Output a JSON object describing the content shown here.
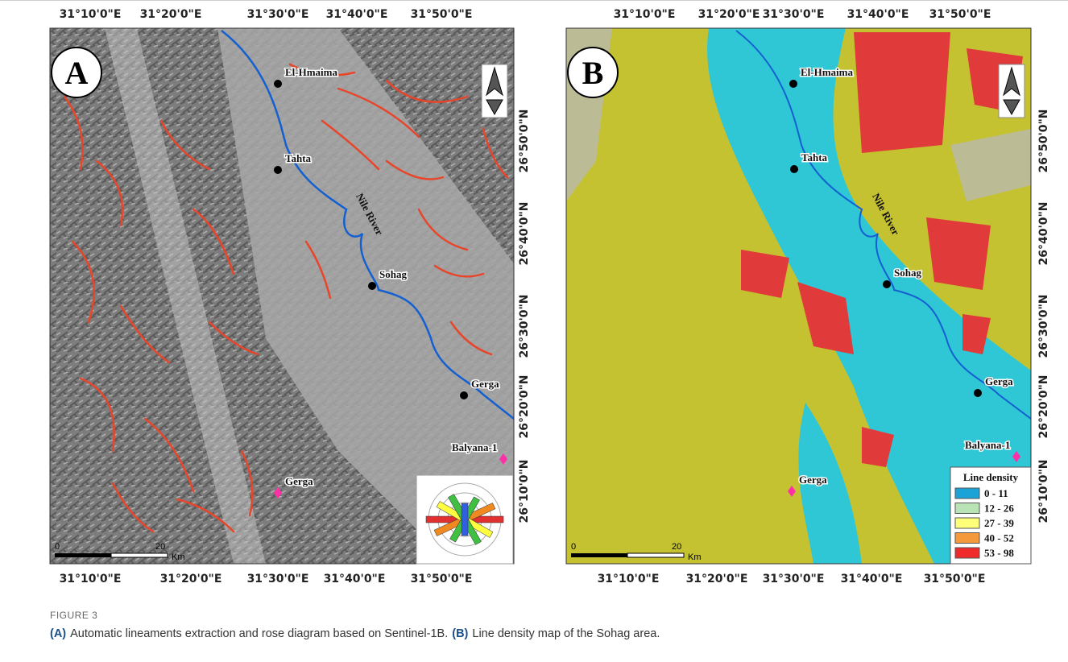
{
  "longitude_labels": [
    "31°10'0\"E",
    "31°20'0\"E",
    "31°30'0\"E",
    "31°40'0\"E",
    "31°50'0\"E"
  ],
  "latitude_labels": [
    "26°50'0\"N",
    "26°40'0\"N",
    "26°30'0\"N",
    "26°20'0\"N",
    "26°10'0\"N"
  ],
  "panels": [
    {
      "label": "A",
      "river": "Nile River",
      "places": [
        "El-Hmaima",
        "Tahta",
        "Sohag",
        "Gerga",
        "Balyana-1",
        "Gerga"
      ],
      "scale": {
        "start": "0",
        "end": "20",
        "unit": "Km"
      }
    },
    {
      "label": "B",
      "river": "Nile River",
      "places": [
        "El-Hmaima",
        "Tahta",
        "Sohag",
        "Gerga",
        "Balyana-1",
        "Gerga"
      ],
      "scale": {
        "start": "0",
        "end": "20",
        "unit": "Km"
      },
      "legend": {
        "title": "Line density",
        "items": [
          {
            "label": "0 - 11",
            "color": "#1ba3d8"
          },
          {
            "label": "12 - 26",
            "color": "#b9e3b4"
          },
          {
            "label": "27 - 39",
            "color": "#ffff7a"
          },
          {
            "label": "40 - 52",
            "color": "#f59a3c"
          },
          {
            "label": "53 - 98",
            "color": "#ee2a2a"
          }
        ]
      }
    }
  ],
  "caption": {
    "label": "FIGURE 3",
    "parts": [
      {
        "tag": "(A)",
        "text": "Automatic lineaments extraction and rose diagram based on Sentinel-1B."
      },
      {
        "tag": "(B)",
        "text": "Line density map of the Sohag area."
      }
    ]
  }
}
